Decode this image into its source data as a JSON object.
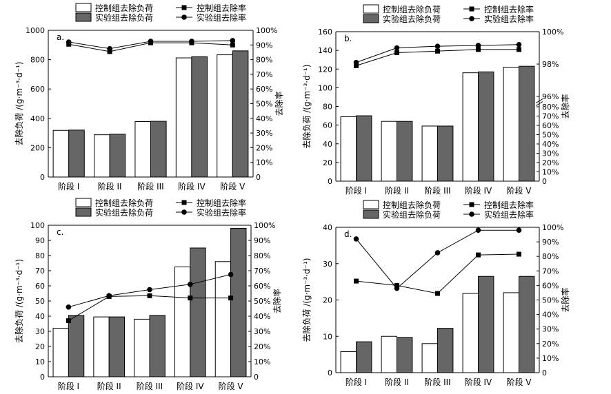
{
  "chart_data": [
    {
      "type": "bar",
      "panel_label": "a.",
      "categories": [
        "阶段 I",
        "阶段 II",
        "阶段 III",
        "阶段 IV",
        "阶段 V"
      ],
      "series": [
        {
          "name": "控制组去除负荷",
          "kind": "bar",
          "color": "#ffffff",
          "values": [
            318,
            288,
            378,
            812,
            833
          ]
        },
        {
          "name": "实验组去除负荷",
          "kind": "bar",
          "color": "#666666",
          "values": [
            320,
            292,
            380,
            820,
            860
          ]
        },
        {
          "name": "控制组去除率",
          "kind": "line",
          "marker": "square",
          "values": [
            90.5,
            85.5,
            91.5,
            91.5,
            90
          ]
        },
        {
          "name": "实验组去除率",
          "kind": "line",
          "marker": "circle",
          "values": [
            92,
            87.5,
            92.5,
            92.5,
            93
          ]
        }
      ],
      "ylabel": "去除负荷 /(g·m⁻³·d⁻¹)",
      "y2label": "去除率",
      "ylim": [
        0,
        1000
      ],
      "yticks": [
        0,
        200,
        400,
        600,
        800,
        1000
      ],
      "y2ticks": [
        "0",
        "10%",
        "20%",
        "30%",
        "40%",
        "50%",
        "60%",
        "70%",
        "80%",
        "90%",
        "100%"
      ],
      "legend_position": "top"
    },
    {
      "type": "bar",
      "panel_label": "b.",
      "categories": [
        "阶段 I",
        "阶段 II",
        "阶段 III",
        "阶段 IV",
        "阶段 V"
      ],
      "series": [
        {
          "name": "控制组去除负荷",
          "kind": "bar",
          "color": "#ffffff",
          "values": [
            69,
            64,
            59,
            116,
            122
          ]
        },
        {
          "name": "实验组去除负荷",
          "kind": "bar",
          "color": "#666666",
          "values": [
            70,
            64,
            59,
            117,
            123
          ]
        },
        {
          "name": "控制组去除率",
          "kind": "line",
          "marker": "square",
          "values": [
            97.9,
            98.7,
            98.8,
            98.9,
            98.9
          ]
        },
        {
          "name": "实验组去除率",
          "kind": "line",
          "marker": "circle",
          "values": [
            98.1,
            99.0,
            99.1,
            99.15,
            99.2
          ]
        }
      ],
      "ylabel": "去除负荷 /(g·m⁻³·d⁻¹)",
      "y2label": "去除率",
      "ylim": [
        0,
        160
      ],
      "yticks": [
        0,
        20,
        40,
        60,
        80,
        100,
        120,
        140,
        160
      ],
      "y2ticks": [
        "0",
        "10%",
        "20%",
        "30%",
        "40%",
        "50%",
        "60%",
        "70%",
        "80%",
        "96%",
        "98%",
        "100%"
      ],
      "y2_axis_break": "between 80% and 96%",
      "legend_position": "top"
    },
    {
      "type": "bar",
      "panel_label": "c.",
      "categories": [
        "阶段 I",
        "阶段 II",
        "阶段 III",
        "阶段 IV",
        "阶段 V"
      ],
      "series": [
        {
          "name": "控制组去除负荷",
          "kind": "bar",
          "color": "#ffffff",
          "values": [
            32,
            39.5,
            38,
            72.5,
            76
          ]
        },
        {
          "name": "实验组去除负荷",
          "kind": "bar",
          "color": "#666666",
          "values": [
            40.5,
            39.5,
            40.5,
            85,
            98
          ]
        },
        {
          "name": "控制组去除率",
          "kind": "line",
          "marker": "square",
          "values": [
            37,
            53,
            53.5,
            52,
            52
          ]
        },
        {
          "name": "实验组去除率",
          "kind": "line",
          "marker": "circle",
          "values": [
            46,
            53.5,
            57.5,
            61,
            67.5
          ]
        }
      ],
      "ylabel": "去除负荷 /(g·m⁻³·d⁻¹)",
      "y2label": "去除率",
      "ylim": [
        0,
        100
      ],
      "yticks": [
        0,
        10,
        20,
        30,
        40,
        50,
        60,
        70,
        80,
        90,
        100
      ],
      "y2ticks": [
        "0",
        "10%",
        "20%",
        "30%",
        "40%",
        "50%",
        "60%",
        "70%",
        "80%",
        "90%",
        "100%"
      ],
      "legend_position": "top"
    },
    {
      "type": "bar",
      "panel_label": "d.",
      "categories": [
        "阶段 I",
        "阶段 II",
        "阶段 III",
        "阶段 IV",
        "阶段 V"
      ],
      "series": [
        {
          "name": "控制组去除负荷",
          "kind": "bar",
          "color": "#ffffff",
          "values": [
            5.8,
            10,
            8,
            21.8,
            22
          ]
        },
        {
          "name": "实验组去除负荷",
          "kind": "bar",
          "color": "#666666",
          "values": [
            8.5,
            9.7,
            12.2,
            26.5,
            26.5
          ]
        },
        {
          "name": "控制组去除率",
          "kind": "line",
          "marker": "square",
          "values": [
            63,
            60,
            54.5,
            81,
            81.5
          ]
        },
        {
          "name": "实验组去除率",
          "kind": "line",
          "marker": "circle",
          "values": [
            92,
            58,
            82.5,
            98,
            98
          ]
        }
      ],
      "ylabel": "去除负荷 /(g·m⁻³·d⁻¹)",
      "y2label": "去除率",
      "ylim": [
        0,
        40
      ],
      "yticks": [
        0,
        10,
        20,
        30,
        40
      ],
      "y2ticks": [
        "0",
        "10%",
        "20%",
        "30%",
        "40%",
        "50%",
        "60%",
        "70%",
        "80%",
        "90%",
        "100%"
      ],
      "legend_position": "top"
    }
  ]
}
